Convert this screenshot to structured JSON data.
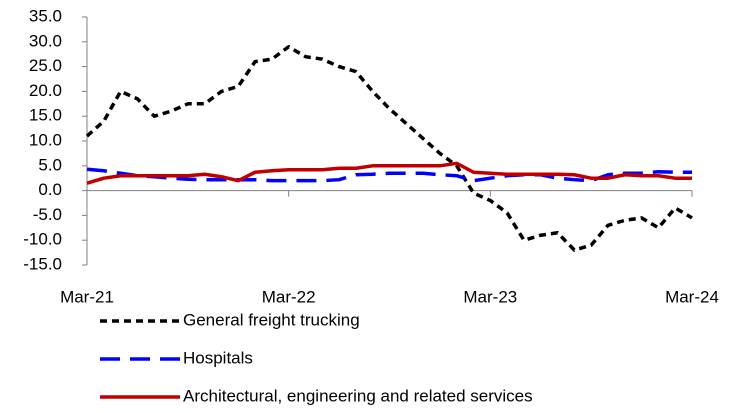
{
  "chart_data": {
    "type": "line",
    "categories": [
      "Mar-21",
      null,
      null,
      null,
      null,
      null,
      null,
      null,
      null,
      null,
      null,
      null,
      "Mar-22",
      null,
      null,
      null,
      null,
      null,
      null,
      null,
      null,
      null,
      null,
      null,
      "Mar-23",
      null,
      null,
      null,
      null,
      null,
      null,
      null,
      null,
      null,
      null,
      null,
      "Mar-24"
    ],
    "series": [
      {
        "name": "General freight trucking",
        "color": "#000000",
        "dash": "dotted",
        "values": [
          11,
          14,
          20,
          18.5,
          15,
          16,
          17.5,
          17.5,
          20,
          21,
          26,
          26.5,
          29,
          27,
          26.5,
          25,
          24,
          20,
          16.5,
          13.5,
          10.5,
          7.5,
          5,
          -0.5,
          -2,
          -4.5,
          -10,
          -9,
          -8.5,
          -12,
          -11,
          -7,
          -6,
          -5.5,
          -7.5,
          -3.5,
          -5.5
        ]
      },
      {
        "name": "Hospitals",
        "color": "#0000ff",
        "dash": "dashed",
        "values": [
          4.3,
          4,
          3.5,
          3,
          2.8,
          2.5,
          2.3,
          2.2,
          2.2,
          2.2,
          2.2,
          2,
          2,
          2,
          2,
          2.2,
          3.2,
          3.3,
          3.5,
          3.5,
          3.5,
          3.2,
          3,
          2,
          2.5,
          3,
          3.2,
          3.2,
          2.5,
          2.2,
          2,
          3.2,
          3.5,
          3.5,
          3.8,
          3.7,
          3.7
        ]
      },
      {
        "name": "Architectural, engineering and related services",
        "color": "#c00000",
        "dash": "solid",
        "values": [
          1.5,
          2.5,
          3,
          3,
          3,
          3,
          3,
          3.3,
          2.8,
          2,
          3.7,
          4,
          4.2,
          4.2,
          4.2,
          4.5,
          4.5,
          5,
          5,
          5,
          5,
          5,
          5.5,
          3.7,
          3.5,
          3.3,
          3.3,
          3.3,
          3.3,
          3.2,
          2.5,
          2.5,
          3.2,
          3,
          3,
          2.5,
          2.5
        ]
      }
    ],
    "ylim": [
      -15,
      35
    ],
    "yticks": [
      {
        "value": -15,
        "label": "-15.0"
      },
      {
        "value": -10,
        "label": "-10.0"
      },
      {
        "value": -5,
        "label": "-5.0"
      },
      {
        "value": 0,
        "label": "0.0"
      },
      {
        "value": 5,
        "label": "5.0"
      },
      {
        "value": 10,
        "label": "10.0"
      },
      {
        "value": 15,
        "label": "15.0"
      },
      {
        "value": 20,
        "label": "20.0"
      },
      {
        "value": 25,
        "label": "25.0"
      },
      {
        "value": 30,
        "label": "30.0"
      },
      {
        "value": 35,
        "label": "35.0"
      }
    ],
    "grid": false,
    "legend": "bottom"
  }
}
